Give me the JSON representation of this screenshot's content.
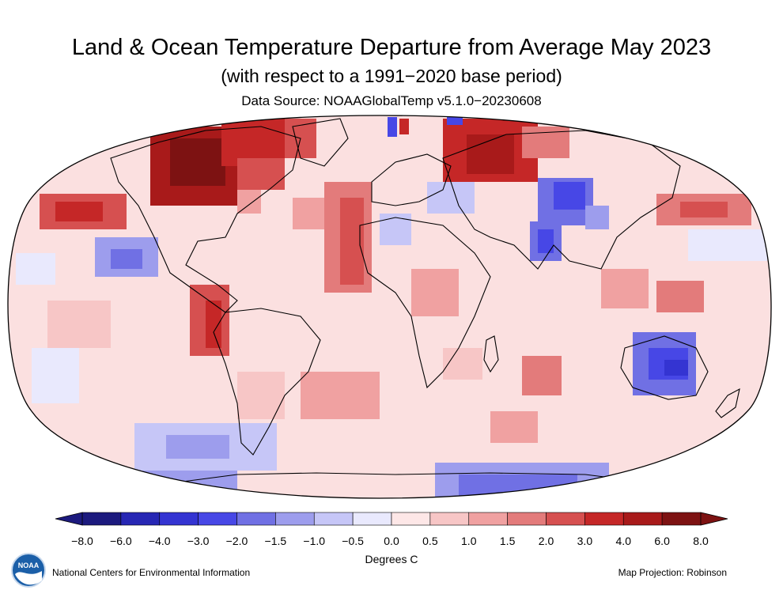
{
  "title": "Land & Ocean Temperature Departure from Average May 2023",
  "subtitle": "(with respect to a 1991−2020 base period)",
  "source": "Data Source: NOAAGlobalTemp v5.1.0−20230608",
  "legend": {
    "units_label": "Degrees C",
    "ticks": [
      "−8.0",
      "−6.0",
      "−4.0",
      "−3.0",
      "−2.0",
      "−1.5",
      "−1.0",
      "−0.5",
      "0.0",
      "0.5",
      "1.0",
      "1.5",
      "2.0",
      "3.0",
      "4.0",
      "6.0",
      "8.0"
    ],
    "colors": [
      "#1c1a7e",
      "#2727b4",
      "#3434d2",
      "#4747e6",
      "#7070e4",
      "#9d9ded",
      "#c6c6f7",
      "#e9e9fd",
      "#fde7e7",
      "#f7c6c6",
      "#f0a1a1",
      "#e37b7b",
      "#d65050",
      "#c52727",
      "#a81a1a",
      "#7d1212"
    ]
  },
  "footer": {
    "organization": "National Centers for Environmental Information",
    "projection": "Map Projection: Robinson"
  },
  "logo_text": "NOAA",
  "map_colors": {
    "ocean_base": "#fbe0e0",
    "land_outline": "#000000",
    "border_outline": "#333333"
  }
}
